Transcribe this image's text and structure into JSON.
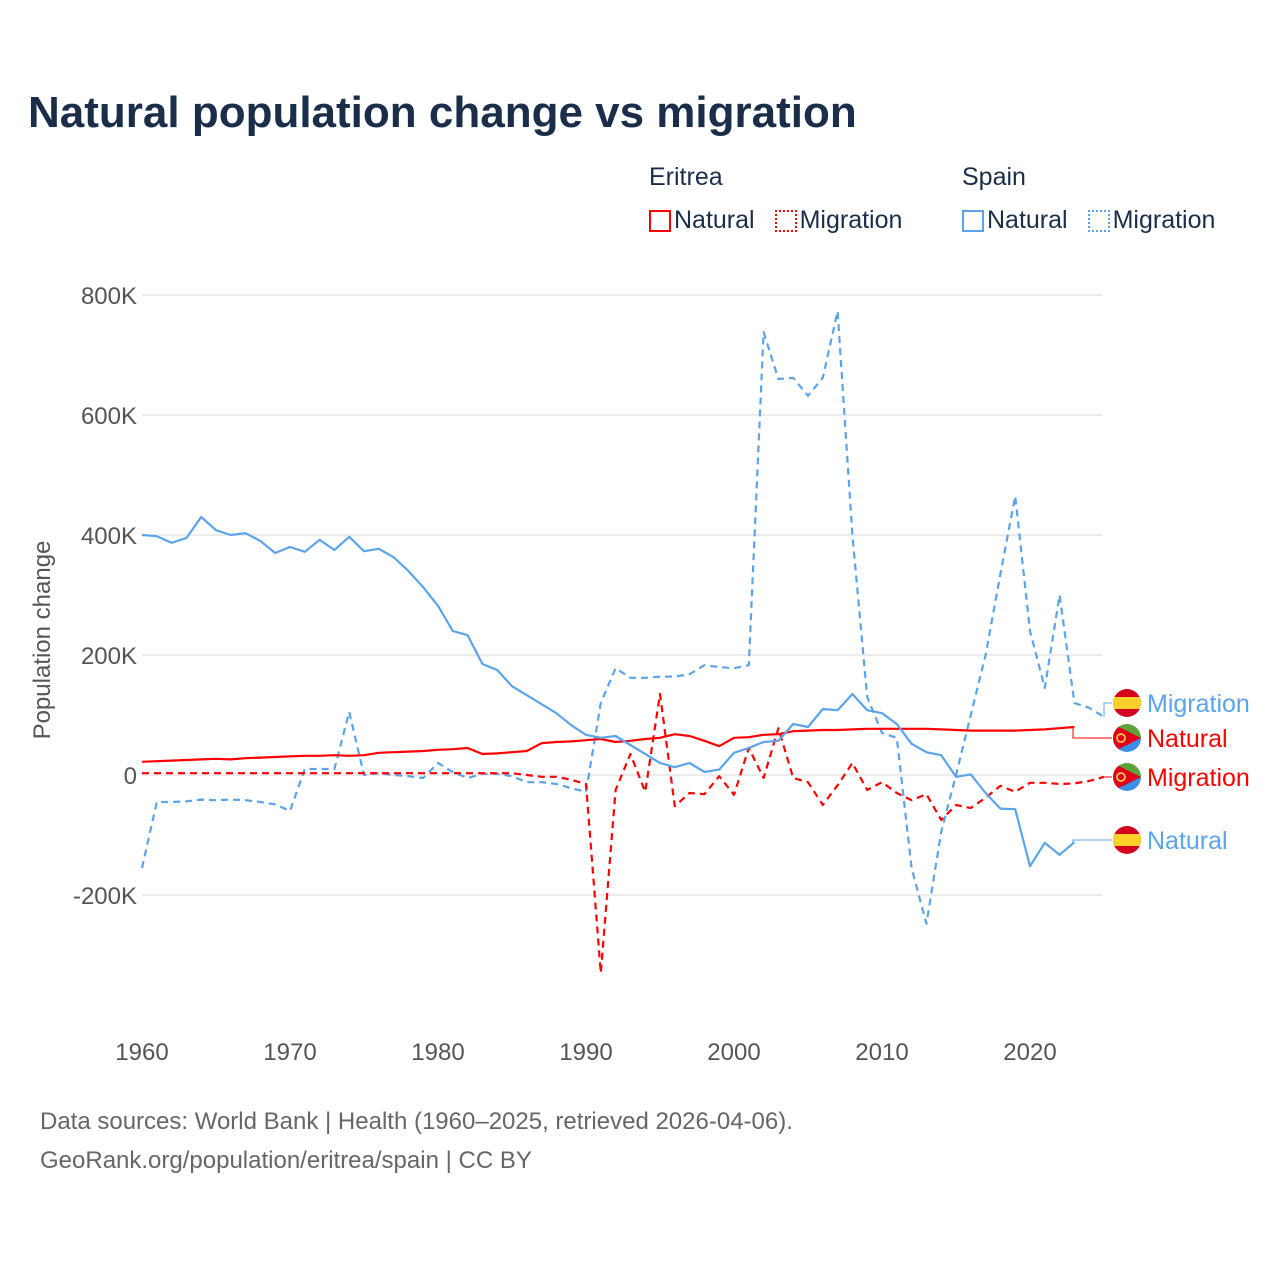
{
  "title": "Natural population change vs migration",
  "legend": {
    "groups": [
      {
        "name": "Eritrea",
        "items": [
          "Natural",
          "Migration"
        ],
        "color": "#ff0000"
      },
      {
        "name": "Spain",
        "items": [
          "Natural",
          "Migration"
        ],
        "color": "#5ba4ec"
      }
    ]
  },
  "footer": {
    "line1": "Data sources: World Bank | Health (1960–2025, retrieved 2026-04-06).",
    "line2": "GeoRank.org/population/eritrea/spain | CC BY"
  },
  "chart_data": {
    "type": "line",
    "title": "Natural population change vs migration",
    "xlabel": "",
    "ylabel": "Population change",
    "xlim": [
      1960,
      2025
    ],
    "ylim": [
      -350000,
      800000
    ],
    "x_ticks": [
      1960,
      1970,
      1980,
      1990,
      2000,
      2010,
      2020
    ],
    "x_tick_labels": [
      "1960",
      "1970",
      "1980",
      "1990",
      "2000",
      "2010",
      "2020"
    ],
    "y_ticks": [
      -200000,
      0,
      200000,
      400000,
      600000,
      800000
    ],
    "y_tick_labels": [
      "-200K",
      "0",
      "200K",
      "400K",
      "600K",
      "800K"
    ],
    "grid": true,
    "legend_placement": "top-right",
    "series": [
      {
        "name": "Spain Migration",
        "label": "Migration",
        "country": "Spain",
        "color": "#5ba4ec",
        "dash": true,
        "start_year": 1960,
        "unit": "thousands",
        "values": [
          -155,
          -45,
          -45,
          -44,
          -41,
          -42,
          -41,
          -42,
          -45,
          -49,
          -60,
          10,
          10,
          10,
          105,
          0,
          3,
          0,
          -2,
          -5,
          20,
          5,
          -5,
          2,
          2,
          -2,
          -12,
          -12,
          -15,
          -22,
          -28,
          120,
          178,
          162,
          162,
          164,
          164,
          168,
          183,
          180,
          178,
          183,
          738,
          660,
          662,
          632,
          662,
          773,
          400,
          130,
          70,
          62,
          -155,
          -248,
          -95,
          0,
          100,
          200,
          335,
          465,
          240,
          145,
          300,
          120,
          112,
          97
        ]
      },
      {
        "name": "Eritrea Natural",
        "label": "Natural",
        "country": "Eritrea",
        "color": "#ff0000",
        "dash": false,
        "start_year": 1960,
        "unit": "thousands",
        "values": [
          22,
          23,
          24,
          25,
          26,
          27,
          26,
          28,
          29,
          30,
          31,
          32,
          32,
          33,
          32,
          33,
          37,
          38,
          39,
          40,
          42,
          43,
          45,
          35,
          36,
          38,
          40,
          53,
          55,
          56,
          58,
          60,
          55,
          57,
          60,
          62,
          68,
          65,
          57,
          48,
          62,
          63,
          67,
          68,
          73,
          74,
          75,
          75,
          76,
          77,
          77,
          77,
          77,
          77,
          76,
          75,
          74,
          74,
          74,
          74,
          75,
          76,
          78,
          80
        ]
      },
      {
        "name": "Eritrea Migration",
        "label": "Migration",
        "country": "Eritrea",
        "color": "#ff0000",
        "dash": true,
        "start_year": 1960,
        "unit": "thousands",
        "values": [
          3,
          3,
          3,
          3,
          3,
          3,
          3,
          3,
          3,
          3,
          3,
          3,
          3,
          3,
          3,
          3,
          3,
          3,
          3,
          3,
          3,
          3,
          3,
          3,
          3,
          3,
          0,
          -3,
          -3,
          -8,
          -15,
          -330,
          -25,
          35,
          -28,
          135,
          -52,
          -30,
          -32,
          -2,
          -33,
          45,
          -5,
          78,
          -5,
          -12,
          -50,
          -17,
          20,
          -25,
          -12,
          -30,
          -42,
          -32,
          -75,
          -50,
          -55,
          -38,
          -18,
          -28,
          -13,
          -13,
          -15,
          -14,
          -10,
          -3
        ]
      },
      {
        "name": "Spain Natural",
        "label": "Natural",
        "country": "Spain",
        "color": "#5ba4ec",
        "dash": false,
        "start_year": 1960,
        "unit": "thousands",
        "values": [
          400,
          398,
          387,
          395,
          430,
          408,
          400,
          403,
          390,
          370,
          380,
          372,
          392,
          375,
          397,
          373,
          377,
          363,
          340,
          313,
          282,
          240,
          233,
          185,
          175,
          148,
          133,
          118,
          103,
          83,
          67,
          62,
          65,
          50,
          35,
          20,
          13,
          20,
          5,
          9,
          37,
          45,
          55,
          57,
          85,
          80,
          110,
          108,
          135,
          108,
          103,
          85,
          52,
          38,
          33,
          -3,
          1,
          -30,
          -56,
          -57,
          -152,
          -113,
          -133,
          -112
        ]
      }
    ]
  }
}
